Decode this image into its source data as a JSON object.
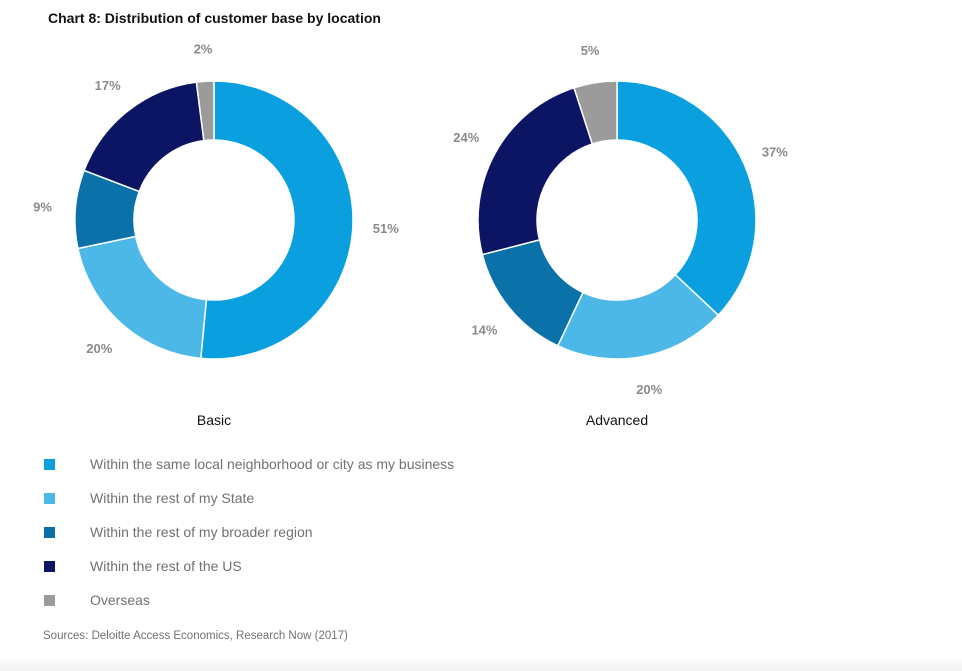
{
  "title": "Chart 8: Distribution of customer base by location",
  "source": "Sources: Deloitte Access Economics, Research Now (2017)",
  "colors": {
    "local": "#0aa0e0",
    "state": "#4cb8e8",
    "region": "#0a72a8",
    "us": "#0c1464",
    "overseas": "#9b9b9b",
    "label": "#8a8a8a"
  },
  "legend": [
    {
      "label": "Within the same local neighborhood or city as my business",
      "color": "#0aa0e0"
    },
    {
      "label": "Within the rest of my State",
      "color": "#4cb8e8"
    },
    {
      "label": "Within the rest of my broader region",
      "color": "#0a72a8"
    },
    {
      "label": "Within the rest of the US",
      "color": "#0c1464"
    },
    {
      "label": "Overseas",
      "color": "#9b9b9b"
    }
  ],
  "chart_data": [
    {
      "type": "pie",
      "donut": true,
      "title": "Basic",
      "categories": [
        "Within the same local neighborhood or city as my business",
        "Within the rest of my State",
        "Within the rest of my broader region",
        "Within the rest of the US",
        "Overseas"
      ],
      "values": [
        51,
        20,
        9,
        17,
        2
      ],
      "value_labels": [
        "51%",
        "20%",
        "9%",
        "17%",
        "2%"
      ],
      "colors": [
        "#0aa0e0",
        "#4cb8e8",
        "#0a72a8",
        "#0c1464",
        "#9b9b9b"
      ],
      "start": "12 o'clock, clockwise"
    },
    {
      "type": "pie",
      "donut": true,
      "title": "Advanced",
      "categories": [
        "Within the same local neighborhood or city as my business",
        "Within the rest of my State",
        "Within the rest of my broader region",
        "Within the rest of the US",
        "Overseas"
      ],
      "values": [
        37,
        20,
        14,
        24,
        5
      ],
      "value_labels": [
        "37%",
        "20%",
        "14%",
        "24%",
        "5%"
      ],
      "colors": [
        "#0aa0e0",
        "#4cb8e8",
        "#0a72a8",
        "#0c1464",
        "#9b9b9b"
      ],
      "start": "12 o'clock, clockwise"
    }
  ]
}
